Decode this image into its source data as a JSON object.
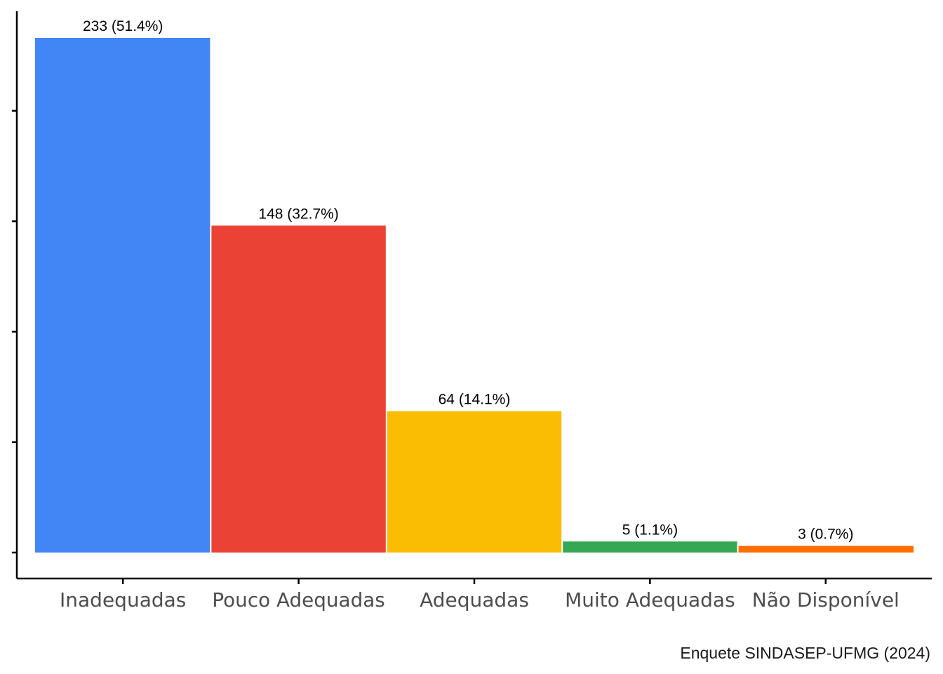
{
  "chart_data": {
    "type": "bar",
    "categories": [
      "Inadequadas",
      "Pouco Adequadas",
      "Adequadas",
      "Muito Adequadas",
      "Não Disponível"
    ],
    "values": [
      233,
      148,
      64,
      5,
      3
    ],
    "data_labels": [
      "233 (51.4%)",
      "148 (32.7%)",
      "64 (14.1%)",
      "5 (1.1%)",
      "3 (0.7%)"
    ],
    "colors": [
      "#4285F4",
      "#EA4335",
      "#FBBC04",
      "#34A853",
      "#FF6D01"
    ],
    "y_ticks": [
      0,
      50,
      100,
      150,
      200
    ],
    "y_tick_labels_shown": false,
    "ylim": [
      0,
      233
    ],
    "title": "",
    "xlabel": "",
    "ylabel": "",
    "caption": "Enquete SINDASEP-UFMG (2024)",
    "grid": false,
    "legend": "none"
  }
}
